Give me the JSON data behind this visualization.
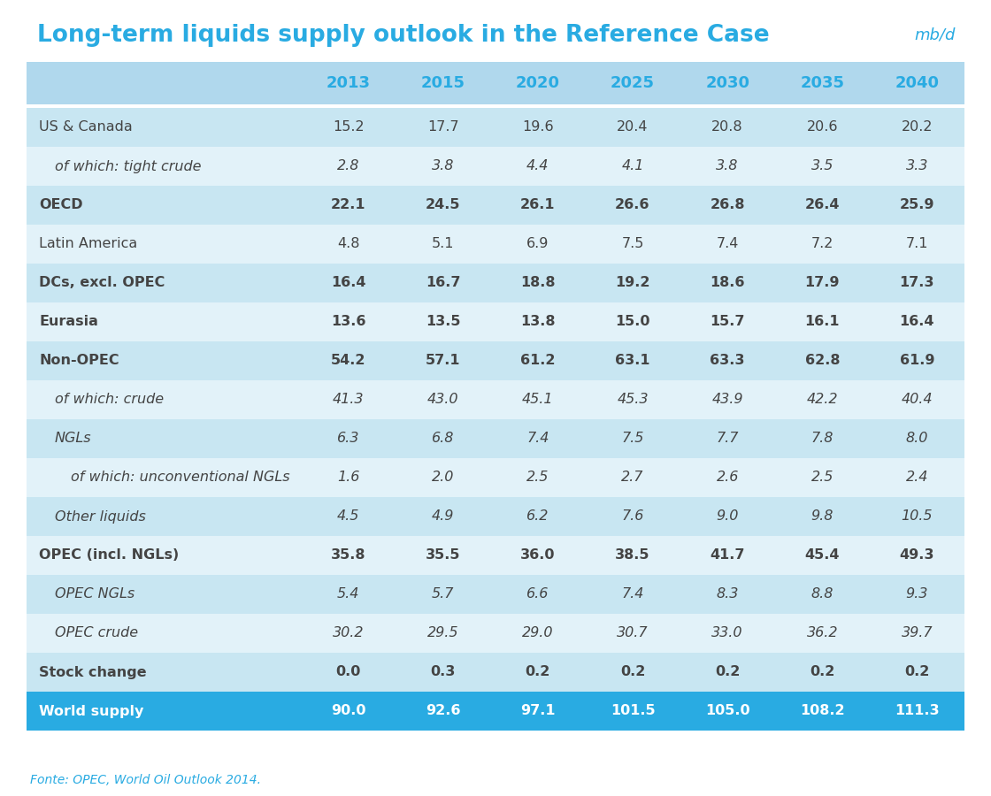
{
  "title": "Long-term liquids supply outlook in the Reference Case",
  "unit": "mb/d",
  "title_color": "#29ABE2",
  "unit_color": "#29ABE2",
  "columns": [
    "2013",
    "2015",
    "2020",
    "2025",
    "2030",
    "2035",
    "2040"
  ],
  "rows": [
    {
      "label": "US & Canada",
      "style": "normal",
      "indent": 0,
      "values": [
        "15.2",
        "17.7",
        "19.6",
        "20.4",
        "20.8",
        "20.6",
        "20.2"
      ],
      "row_bg": "#C8E6F2"
    },
    {
      "label": "of which: tight crude",
      "style": "italic",
      "indent": 1,
      "values": [
        "2.8",
        "3.8",
        "4.4",
        "4.1",
        "3.8",
        "3.5",
        "3.3"
      ],
      "row_bg": "#E2F2F9"
    },
    {
      "label": "OECD",
      "style": "bold",
      "indent": 0,
      "values": [
        "22.1",
        "24.5",
        "26.1",
        "26.6",
        "26.8",
        "26.4",
        "25.9"
      ],
      "row_bg": "#C8E6F2"
    },
    {
      "label": "Latin America",
      "style": "normal",
      "indent": 0,
      "values": [
        "4.8",
        "5.1",
        "6.9",
        "7.5",
        "7.4",
        "7.2",
        "7.1"
      ],
      "row_bg": "#E2F2F9"
    },
    {
      "label": "DCs, excl. OPEC",
      "style": "bold",
      "indent": 0,
      "values": [
        "16.4",
        "16.7",
        "18.8",
        "19.2",
        "18.6",
        "17.9",
        "17.3"
      ],
      "row_bg": "#C8E6F2"
    },
    {
      "label": "Eurasia",
      "style": "bold",
      "indent": 0,
      "values": [
        "13.6",
        "13.5",
        "13.8",
        "15.0",
        "15.7",
        "16.1",
        "16.4"
      ],
      "row_bg": "#E2F2F9"
    },
    {
      "label": "Non-OPEC",
      "style": "bold",
      "indent": 0,
      "values": [
        "54.2",
        "57.1",
        "61.2",
        "63.1",
        "63.3",
        "62.8",
        "61.9"
      ],
      "row_bg": "#C8E6F2"
    },
    {
      "label": "of which: crude",
      "style": "italic",
      "indent": 1,
      "values": [
        "41.3",
        "43.0",
        "45.1",
        "45.3",
        "43.9",
        "42.2",
        "40.4"
      ],
      "row_bg": "#E2F2F9"
    },
    {
      "label": "NGLs",
      "style": "italic",
      "indent": 1,
      "values": [
        "6.3",
        "6.8",
        "7.4",
        "7.5",
        "7.7",
        "7.8",
        "8.0"
      ],
      "row_bg": "#C8E6F2"
    },
    {
      "label": "of which: unconventional NGLs",
      "style": "italic",
      "indent": 2,
      "values": [
        "1.6",
        "2.0",
        "2.5",
        "2.7",
        "2.6",
        "2.5",
        "2.4"
      ],
      "row_bg": "#E2F2F9"
    },
    {
      "label": "Other liquids",
      "style": "italic",
      "indent": 1,
      "values": [
        "4.5",
        "4.9",
        "6.2",
        "7.6",
        "9.0",
        "9.8",
        "10.5"
      ],
      "row_bg": "#C8E6F2"
    },
    {
      "label": "OPEC (incl. NGLs)",
      "style": "bold",
      "indent": 0,
      "values": [
        "35.8",
        "35.5",
        "36.0",
        "38.5",
        "41.7",
        "45.4",
        "49.3"
      ],
      "row_bg": "#E2F2F9"
    },
    {
      "label": "OPEC NGLs",
      "style": "italic",
      "indent": 1,
      "values": [
        "5.4",
        "5.7",
        "6.6",
        "7.4",
        "8.3",
        "8.8",
        "9.3"
      ],
      "row_bg": "#C8E6F2"
    },
    {
      "label": "OPEC crude",
      "style": "italic",
      "indent": 1,
      "values": [
        "30.2",
        "29.5",
        "29.0",
        "30.7",
        "33.0",
        "36.2",
        "39.7"
      ],
      "row_bg": "#E2F2F9"
    },
    {
      "label": "Stock change",
      "style": "bold",
      "indent": 0,
      "values": [
        "0.0",
        "0.3",
        "0.2",
        "0.2",
        "0.2",
        "0.2",
        "0.2"
      ],
      "row_bg": "#C8E6F2"
    },
    {
      "label": "World supply",
      "style": "bold_white",
      "indent": 0,
      "values": [
        "90.0",
        "92.6",
        "97.1",
        "101.5",
        "105.0",
        "108.2",
        "111.3"
      ],
      "row_bg": "#29ABE2"
    }
  ],
  "header_bg": "#B0D8ED",
  "header_text_color": "#29ABE2",
  "footer": "Fonte: OPEC, World Oil Outlook 2014.",
  "footer_color": "#29ABE2",
  "data_text_color": "#444444"
}
